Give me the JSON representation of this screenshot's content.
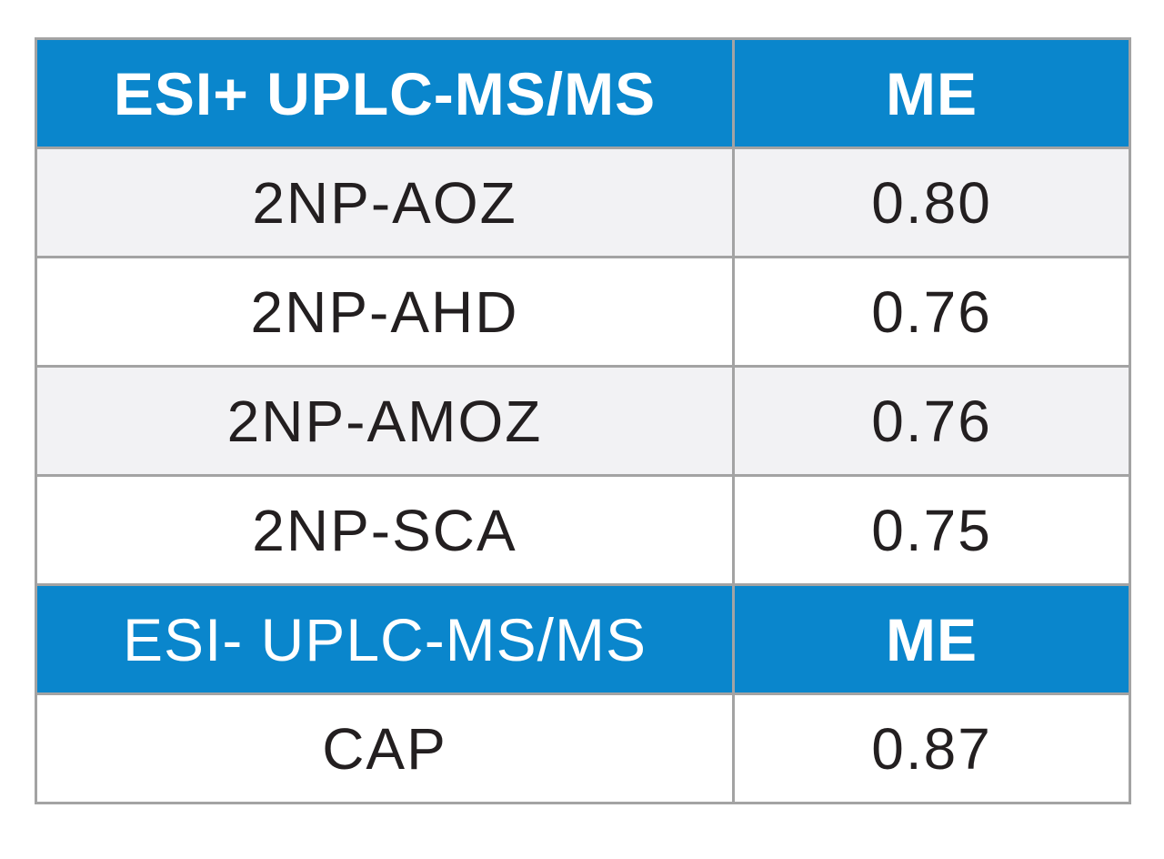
{
  "table": {
    "sections": [
      {
        "header": {
          "method": "ESI+ UPLC-MS/MS",
          "value_label": "ME"
        },
        "rows": [
          {
            "compound": "2NP-AOZ",
            "me": "0.80"
          },
          {
            "compound": "2NP-AHD",
            "me": "0.76"
          },
          {
            "compound": "2NP-AMOZ",
            "me": "0.76"
          },
          {
            "compound": "2NP-SCA",
            "me": "0.75"
          }
        ]
      },
      {
        "header": {
          "method": "ESI- UPLC-MS/MS",
          "value_label": "ME"
        },
        "rows": [
          {
            "compound": "CAP",
            "me": "0.87"
          }
        ]
      }
    ]
  },
  "colors": {
    "header_blue": "#0a86cc",
    "header_text": "#ffffff",
    "row_shaded": "#f2f2f4",
    "row_plain": "#ffffff",
    "body_text": "#231f20",
    "grid_line": "#a3a3a3"
  }
}
